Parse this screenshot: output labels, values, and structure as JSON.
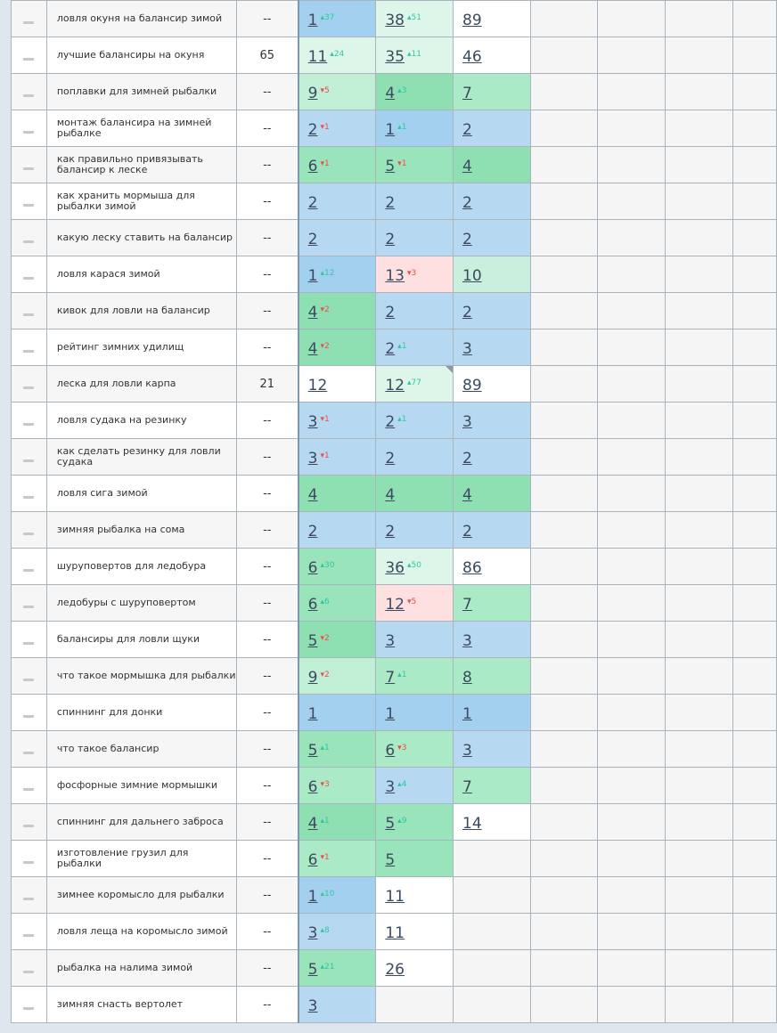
{
  "colors": {
    "dblue": "#a4d0ef",
    "lblue": "#b6d9f1",
    "green": "#8ee0b3",
    "green2": "#99e4ba",
    "lgreen": "#abeac6",
    "mint": "#c9f0dc",
    "vlight": "#def6ea",
    "pink": "#ffe0e0",
    "up": "#2cc9a0",
    "down": "#ef4b4b"
  },
  "rows": [
    {
      "kw": "ловля окуня на балансир зимой",
      "num": "--",
      "c": [
        {
          "v": "1",
          "d": "37",
          "dir": "up",
          "cl": "dblue"
        },
        {
          "v": "38",
          "d": "51",
          "dir": "up",
          "cl": "vlight"
        },
        {
          "v": "89",
          "cl": "white"
        }
      ]
    },
    {
      "kw": "лучшие балансиры на окуня",
      "num": "65",
      "c": [
        {
          "v": "11",
          "d": "24",
          "dir": "up",
          "cl": "vlight"
        },
        {
          "v": "35",
          "d": "11",
          "dir": "up",
          "cl": "vlight"
        },
        {
          "v": "46",
          "cl": "white"
        }
      ]
    },
    {
      "kw": "поплавки для зимней рыбалки",
      "num": "--",
      "c": [
        {
          "v": "9",
          "d": "5",
          "dir": "down",
          "cl": "mint2"
        },
        {
          "v": "4",
          "d": "3",
          "dir": "up",
          "cl": "green"
        },
        {
          "v": "7",
          "cl": "lgreen"
        }
      ]
    },
    {
      "kw": "монтаж балансира на зимней рыбалке",
      "num": "--",
      "c": [
        {
          "v": "2",
          "d": "1",
          "dir": "down",
          "cl": "lblue"
        },
        {
          "v": "1",
          "d": "1",
          "dir": "up",
          "cl": "dblue"
        },
        {
          "v": "2",
          "cl": "lblue"
        }
      ]
    },
    {
      "kw": "как правильно привязывать балансир к леске",
      "num": "--",
      "c": [
        {
          "v": "6",
          "d": "1",
          "dir": "down",
          "cl": "green2"
        },
        {
          "v": "5",
          "d": "1",
          "dir": "down",
          "cl": "green2"
        },
        {
          "v": "4",
          "cl": "green"
        }
      ]
    },
    {
      "kw": "как хранить мормыша для рыбалки зимой",
      "num": "--",
      "c": [
        {
          "v": "2",
          "cl": "lblue"
        },
        {
          "v": "2",
          "cl": "lblue"
        },
        {
          "v": "2",
          "cl": "lblue"
        }
      ]
    },
    {
      "kw": "какую леску ставить на балансир",
      "num": "--",
      "c": [
        {
          "v": "2",
          "cl": "lblue"
        },
        {
          "v": "2",
          "cl": "lblue"
        },
        {
          "v": "2",
          "cl": "lblue"
        }
      ]
    },
    {
      "kw": "ловля карася зимой",
      "num": "--",
      "c": [
        {
          "v": "1",
          "d": "12",
          "dir": "up",
          "cl": "dblue"
        },
        {
          "v": "13",
          "d": "3",
          "dir": "down",
          "cl": "pink"
        },
        {
          "v": "10",
          "cl": "mint"
        }
      ]
    },
    {
      "kw": "кивок для ловли на балансир",
      "num": "--",
      "c": [
        {
          "v": "4",
          "d": "2",
          "dir": "down",
          "cl": "green"
        },
        {
          "v": "2",
          "cl": "lblue"
        },
        {
          "v": "2",
          "cl": "lblue"
        }
      ]
    },
    {
      "kw": "рейтинг зимних удилищ",
      "num": "--",
      "c": [
        {
          "v": "4",
          "d": "2",
          "dir": "down",
          "cl": "green"
        },
        {
          "v": "2",
          "d": "1",
          "dir": "up",
          "cl": "lblue"
        },
        {
          "v": "3",
          "cl": "lblue"
        }
      ]
    },
    {
      "kw": "леска для ловли карпа",
      "num": "21",
      "c": [
        {
          "v": "12",
          "cl": "white"
        },
        {
          "v": "12",
          "d": "77",
          "dir": "up",
          "cl": "vlight",
          "corner": true
        },
        {
          "v": "89",
          "cl": "white"
        }
      ]
    },
    {
      "kw": "ловля судака на резинку",
      "num": "--",
      "c": [
        {
          "v": "3",
          "d": "1",
          "dir": "down",
          "cl": "lblue"
        },
        {
          "v": "2",
          "d": "1",
          "dir": "up",
          "cl": "lblue"
        },
        {
          "v": "3",
          "cl": "lblue"
        }
      ]
    },
    {
      "kw": "как сделать резинку для ловли судака",
      "num": "--",
      "c": [
        {
          "v": "3",
          "d": "1",
          "dir": "down",
          "cl": "lblue"
        },
        {
          "v": "2",
          "cl": "lblue"
        },
        {
          "v": "2",
          "cl": "lblue"
        }
      ]
    },
    {
      "kw": "ловля сига зимой",
      "num": "--",
      "c": [
        {
          "v": "4",
          "cl": "green"
        },
        {
          "v": "4",
          "cl": "green"
        },
        {
          "v": "4",
          "cl": "green"
        }
      ]
    },
    {
      "kw": "зимняя рыбалка на сома",
      "num": "--",
      "c": [
        {
          "v": "2",
          "cl": "lblue"
        },
        {
          "v": "2",
          "cl": "lblue"
        },
        {
          "v": "2",
          "cl": "lblue"
        }
      ]
    },
    {
      "kw": "шуруповертов для ледобура",
      "num": "--",
      "c": [
        {
          "v": "6",
          "d": "30",
          "dir": "up",
          "cl": "green2"
        },
        {
          "v": "36",
          "d": "50",
          "dir": "up",
          "cl": "vlight"
        },
        {
          "v": "86",
          "cl": "white"
        }
      ]
    },
    {
      "kw": "ледобуры с шуруповертом",
      "num": "--",
      "c": [
        {
          "v": "6",
          "d": "6",
          "dir": "up",
          "cl": "green2"
        },
        {
          "v": "12",
          "d": "5",
          "dir": "down",
          "cl": "pink"
        },
        {
          "v": "7",
          "cl": "lgreen"
        }
      ]
    },
    {
      "kw": "балансиры для ловли щуки",
      "num": "--",
      "c": [
        {
          "v": "5",
          "d": "2",
          "dir": "down",
          "cl": "green"
        },
        {
          "v": "3",
          "cl": "lblue"
        },
        {
          "v": "3",
          "cl": "lblue"
        }
      ]
    },
    {
      "kw": "что такое мормышка для рыбалки",
      "num": "--",
      "c": [
        {
          "v": "9",
          "d": "2",
          "dir": "down",
          "cl": "mint2"
        },
        {
          "v": "7",
          "d": "1",
          "dir": "up",
          "cl": "lgreen"
        },
        {
          "v": "8",
          "cl": "lgreen"
        }
      ]
    },
    {
      "kw": "спиннинг для донки",
      "num": "--",
      "c": [
        {
          "v": "1",
          "cl": "dblue"
        },
        {
          "v": "1",
          "cl": "dblue"
        },
        {
          "v": "1",
          "cl": "dblue"
        }
      ]
    },
    {
      "kw": "что такое балансир",
      "num": "--",
      "c": [
        {
          "v": "5",
          "d": "1",
          "dir": "up",
          "cl": "green2"
        },
        {
          "v": "6",
          "d": "3",
          "dir": "down",
          "cl": "lgreen"
        },
        {
          "v": "3",
          "cl": "lblue"
        }
      ]
    },
    {
      "kw": "фосфорные зимние мормышки",
      "num": "--",
      "c": [
        {
          "v": "6",
          "d": "3",
          "dir": "down",
          "cl": "lgreen"
        },
        {
          "v": "3",
          "d": "4",
          "dir": "up",
          "cl": "lblue"
        },
        {
          "v": "7",
          "cl": "lgreen"
        }
      ]
    },
    {
      "kw": "спиннинг для дальнего заброса",
      "num": "--",
      "c": [
        {
          "v": "4",
          "d": "1",
          "dir": "up",
          "cl": "green"
        },
        {
          "v": "5",
          "d": "9",
          "dir": "up",
          "cl": "green2"
        },
        {
          "v": "14",
          "cl": "white"
        }
      ]
    },
    {
      "kw": "изготовление грузил для рыбалки",
      "num": "--",
      "c": [
        {
          "v": "6",
          "d": "1",
          "dir": "down",
          "cl": "lgreen"
        },
        {
          "v": "5",
          "cl": "green2"
        },
        null
      ]
    },
    {
      "kw": "зимнее коромысло для рыбалки",
      "num": "--",
      "c": [
        {
          "v": "1",
          "d": "10",
          "dir": "up",
          "cl": "dblue"
        },
        {
          "v": "11",
          "cl": "white"
        },
        null
      ]
    },
    {
      "kw": "ловля леща на коромысло зимой",
      "num": "--",
      "c": [
        {
          "v": "3",
          "d": "8",
          "dir": "up",
          "cl": "lblue"
        },
        {
          "v": "11",
          "cl": "white"
        },
        null
      ]
    },
    {
      "kw": "рыбалка на налима зимой",
      "num": "--",
      "c": [
        {
          "v": "5",
          "d": "21",
          "dir": "up",
          "cl": "green2"
        },
        {
          "v": "26",
          "cl": "white"
        },
        null
      ]
    },
    {
      "kw": "зимняя снасть вертолет",
      "num": "--",
      "c": [
        {
          "v": "3",
          "cl": "lblue"
        },
        null,
        null
      ]
    }
  ]
}
